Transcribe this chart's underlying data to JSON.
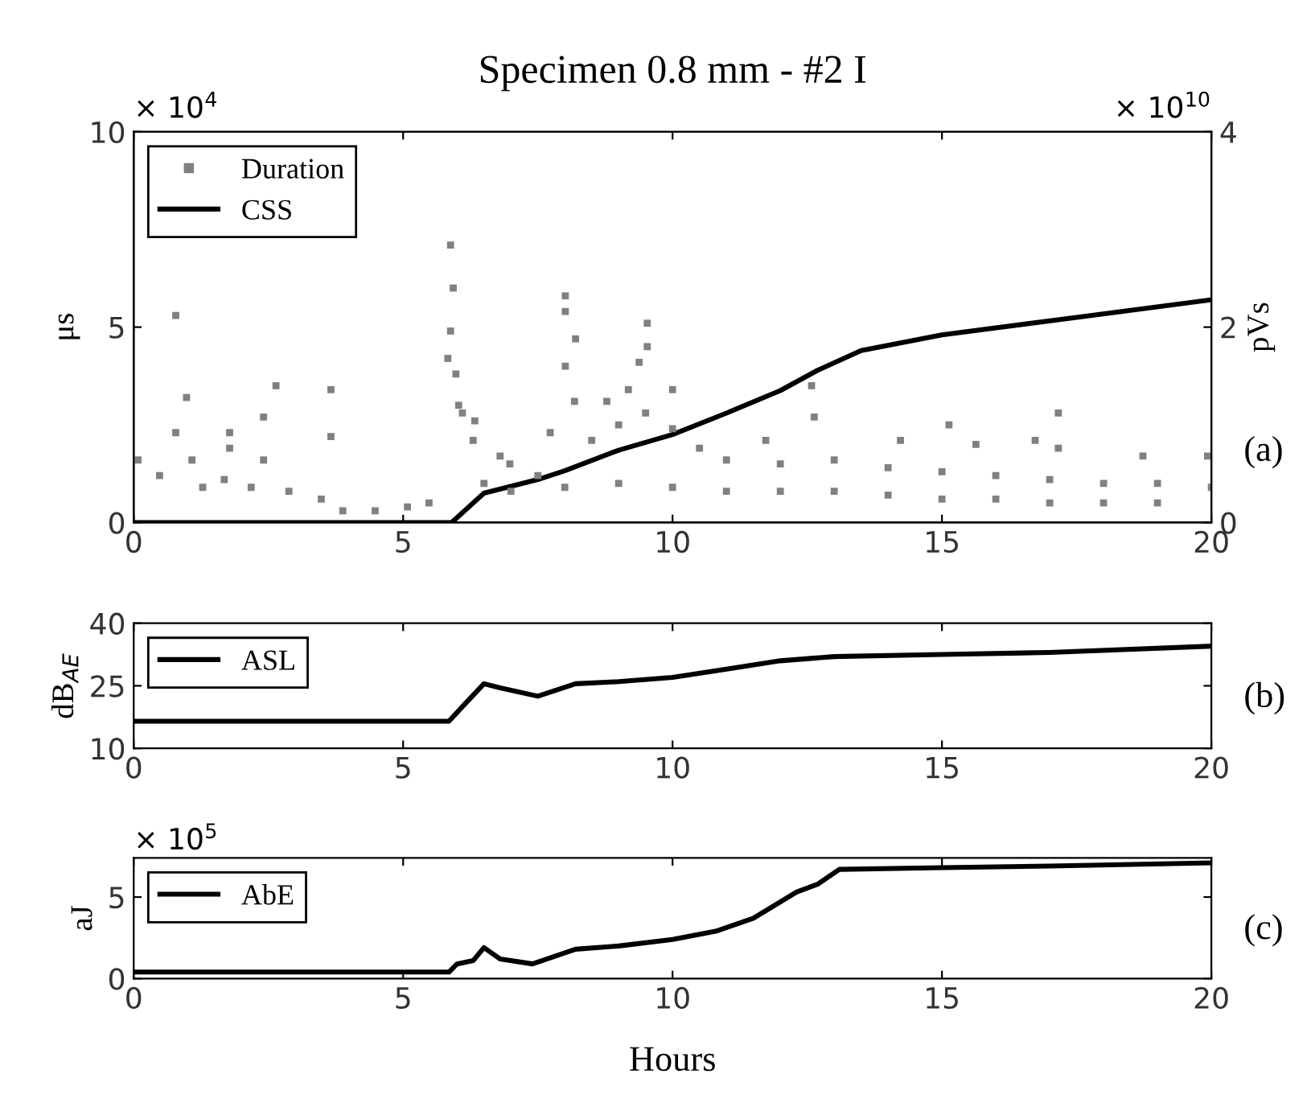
{
  "chart_data": [
    {
      "type": "scatter",
      "title": "Specimen 0.8 mm - #2 I",
      "ylabel": "μs",
      "y2label": "pVs",
      "xlim": [
        0,
        20
      ],
      "xticks": [
        0,
        5,
        10,
        15,
        20
      ],
      "ylim": [
        0,
        10
      ],
      "yticks": [
        0,
        5,
        10
      ],
      "y2lim": [
        0,
        4
      ],
      "y2ticks": [
        0,
        2,
        4
      ],
      "legend": "top left",
      "grid": false,
      "annotations": [
        "× 10$^{4}$",
        "× 10$^{10}$",
        "(a)"
      ],
      "series": [
        {
          "name": "Duration",
          "type": "scatter",
          "marker": "square",
          "color": "#808080",
          "x": [
            0.78,
            0.98,
            0.78,
            1.08,
            1.78,
            1.78,
            2.41,
            2.41,
            2.64,
            3.66,
            3.66,
            5.88,
            5.93,
            5.88,
            5.83,
            5.98,
            6.03,
            6.33,
            8.01,
            8.01,
            8.2,
            8.01,
            9.53,
            9.53,
            9.38,
            9.18,
            8.78,
            8.18,
            7.73,
            6.98,
            0.08,
            0.48,
            1.28,
            1.68,
            2.18,
            2.88,
            3.48,
            3.88,
            4.48,
            5.08,
            5.48,
            6.1,
            6.3,
            6.8,
            7.5,
            8.5,
            9.0,
            9.5,
            10.0,
            12.58,
            12.63,
            15.13,
            17.16,
            17.16,
            10.0,
            11.73,
            14.23,
            15.63,
            16.73,
            18.73,
            19.93,
            10.5,
            11.0,
            12.0,
            13.0,
            14.0,
            15.0,
            16.0,
            17.0,
            18.0,
            19.0,
            20.0,
            6.5,
            7.0,
            8.0,
            9.0,
            10.0,
            11.0,
            12.0,
            13.0,
            14.0,
            15.0,
            16.0,
            17.0,
            18.0,
            19.0
          ],
          "values": [
            5.3,
            3.2,
            2.3,
            1.6,
            2.3,
            1.9,
            2.7,
            1.6,
            3.5,
            3.4,
            2.2,
            7.1,
            6.0,
            4.9,
            4.2,
            3.8,
            3.0,
            2.6,
            5.8,
            5.4,
            4.7,
            4.0,
            5.1,
            4.5,
            4.1,
            3.4,
            3.1,
            3.1,
            2.3,
            1.5,
            1.6,
            1.2,
            0.9,
            1.1,
            0.9,
            0.8,
            0.6,
            0.3,
            0.3,
            0.4,
            0.5,
            2.8,
            2.1,
            1.7,
            1.2,
            2.1,
            2.5,
            2.8,
            2.4,
            3.5,
            2.7,
            2.5,
            2.8,
            1.9,
            3.4,
            2.1,
            2.1,
            2.0,
            2.1,
            1.7,
            1.7,
            1.9,
            1.6,
            1.5,
            1.6,
            1.4,
            1.3,
            1.2,
            1.1,
            1.0,
            1.0,
            0.9,
            1.0,
            0.8,
            0.9,
            1.0,
            0.9,
            0.8,
            0.8,
            0.8,
            0.7,
            0.6,
            0.6,
            0.5,
            0.5,
            0.5
          ]
        },
        {
          "name": "CSS",
          "type": "line",
          "axis": "y2",
          "color": "#000000",
          "x": [
            0,
            5.9,
            6.5,
            7.5,
            8,
            9,
            10,
            11,
            12,
            12.7,
            13.5,
            15,
            17.5,
            20
          ],
          "values": [
            0,
            0,
            0.3,
            0.44,
            0.53,
            0.74,
            0.9,
            1.12,
            1.35,
            1.56,
            1.76,
            1.92,
            2.1,
            2.28
          ]
        }
      ]
    },
    {
      "type": "line",
      "ylabel": "dB$_{AE}$",
      "xlim": [
        0,
        20
      ],
      "xticks": [
        0,
        5,
        10,
        15,
        20
      ],
      "ylim": [
        10,
        40
      ],
      "yticks": [
        10,
        25,
        40
      ],
      "legend": "top left",
      "grid": false,
      "annotations": [
        "(b)"
      ],
      "series": [
        {
          "name": "ASL",
          "color": "#000000",
          "x": [
            0,
            5.85,
            6.1,
            6.5,
            6.8,
            7.5,
            8.2,
            9,
            10,
            11,
            12,
            13,
            15,
            17,
            20
          ],
          "values": [
            16.5,
            16.5,
            20,
            25.5,
            24.5,
            22.5,
            25.5,
            26,
            27,
            29,
            31,
            32,
            32.5,
            33,
            34.5
          ]
        }
      ]
    },
    {
      "type": "line",
      "xlabel": "Hours",
      "ylabel": "aJ",
      "xlim": [
        0,
        20
      ],
      "xticks": [
        0,
        5,
        10,
        15,
        20
      ],
      "ylim": [
        0,
        7.4
      ],
      "yticks": [
        0,
        5
      ],
      "legend": "top left",
      "grid": false,
      "annotations": [
        "× 10$^{5}$",
        "(c)"
      ],
      "series": [
        {
          "name": "AbE",
          "color": "#000000",
          "x": [
            0,
            5.85,
            6,
            6.3,
            6.5,
            6.8,
            7.4,
            8.2,
            9,
            10,
            10.8,
            11.5,
            12.3,
            12.7,
            13.1,
            15,
            17,
            20
          ],
          "values": [
            0.4,
            0.4,
            0.9,
            1.1,
            1.9,
            1.2,
            0.9,
            1.8,
            2,
            2.4,
            2.9,
            3.7,
            5.3,
            5.8,
            6.7,
            6.8,
            6.9,
            7.1
          ]
        }
      ]
    }
  ]
}
